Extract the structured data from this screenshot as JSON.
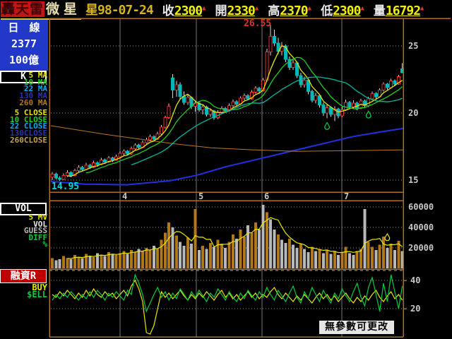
{
  "topbar": {
    "logo": "轟天雷",
    "stock_name": "微星",
    "date": "星98-07-24",
    "fields": [
      {
        "label": "收",
        "value": "2300",
        "arrow": "▲"
      },
      {
        "label": "開",
        "value": "2330",
        "arrow": "▲"
      },
      {
        "label": "高",
        "value": "2370",
        "arrow": "▲"
      },
      {
        "label": "低",
        "value": "2300",
        "arrow": "▲"
      },
      {
        "label": "量",
        "value": "16792",
        "arrow": "▲"
      }
    ]
  },
  "sidebar": {
    "period_line": "日　線",
    "stock_id": "2377",
    "capital": "100億",
    "k_button": "K",
    "vol_button": "VOL",
    "margin_button": "融資R",
    "ma_legend": [
      {
        "label": "5 MA",
        "color": "#e8e800"
      },
      {
        "label": "10 MA",
        "color": "#22cc22"
      },
      {
        "label": "22 MA",
        "color": "#00aaee"
      },
      {
        "label": "130 MA",
        "color": "#2a35a8"
      },
      {
        "label": "260 MA",
        "color": "#b07820"
      }
    ],
    "close_legend": [
      {
        "label": "5 CLOSE",
        "color": "#e8e800"
      },
      {
        "label": "10 CLOSE",
        "color": "#22cc22"
      },
      {
        "label": "22 CLOSE",
        "color": "#00aaee"
      },
      {
        "label": "130CLOSE",
        "color": "#2a35a8"
      },
      {
        "label": "260CLOSE",
        "color": "#c0a050"
      }
    ],
    "vol_legend": [
      {
        "label": "5 MV",
        "color": "#e8e800"
      },
      {
        "label": "VOL",
        "color": "#e8e8e8"
      },
      {
        "label": "GUESS",
        "color": "#b8b8b8"
      },
      {
        "label": "DIFF",
        "color": "#00cc44"
      },
      {
        "label": "%",
        "color": "#00cc44"
      }
    ],
    "margin_legend": [
      {
        "label": "BUY",
        "color": "#e8e800"
      },
      {
        "label": "$ELL",
        "color": "#00cc44"
      }
    ]
  },
  "status_tooltip": "無參數可更改",
  "colors": {
    "frame": "#a87020",
    "grid": "#787878",
    "dotted": "#999999",
    "up": "#e03030",
    "down": "#00b8b8",
    "wick": "#d8d8d8",
    "bar_orange": "#b07818",
    "bar_gray": "#b8b8b8",
    "line_130": "#2230e0",
    "line_260": "#b87820",
    "axis_text": "#c8c8c8",
    "high_label": "#e03030",
    "low_label": "#00d8d8"
  },
  "chart_data": [
    {
      "type": "candlestick",
      "title": "微星 2377 日線",
      "x_tick_labels": [
        "4",
        "5",
        "6",
        "7"
      ],
      "y_ticks": [
        25,
        20,
        15
      ],
      "ylim": [
        14.0,
        27.6
      ],
      "high_annotation": "26.55",
      "low_annotation": "14.95",
      "ma_periods": [
        {
          "period": 5,
          "color": "#e8e800"
        },
        {
          "period": 10,
          "color": "#22cc22"
        },
        {
          "period": 22,
          "color": "#00b8a0"
        }
      ],
      "overlay_lines": [
        {
          "name": "130-line",
          "color": "#2230e0",
          "width": 2,
          "points": [
            [
              72,
              14.9
            ],
            [
              120,
              14.7
            ],
            [
              180,
              14.65
            ],
            [
              240,
              14.95
            ],
            [
              278,
              15.35
            ],
            [
              320,
              16.0
            ],
            [
              380,
              16.75
            ],
            [
              440,
              17.5
            ],
            [
              500,
              18.25
            ],
            [
              540,
              18.6
            ],
            [
              571,
              18.85
            ]
          ]
        },
        {
          "name": "260-line",
          "color": "#b87820",
          "width": 1,
          "points": [
            [
              72,
              19.05
            ],
            [
              150,
              18.4
            ],
            [
              240,
              17.75
            ],
            [
              300,
              17.4
            ],
            [
              360,
              17.25
            ],
            [
              420,
              17.15
            ],
            [
              500,
              17.2
            ],
            [
              571,
              17.25
            ]
          ]
        }
      ],
      "markers": [
        {
          "index": 73,
          "type": "droplet",
          "color": "#00cc44"
        },
        {
          "index": 84,
          "type": "droplet",
          "color": "#00cc44"
        }
      ],
      "candles": [
        [
          15.2,
          15.6,
          15.0,
          15.45
        ],
        [
          15.45,
          15.55,
          15.05,
          15.15
        ],
        [
          15.15,
          15.3,
          14.95,
          15.05
        ],
        [
          15.05,
          15.5,
          15.0,
          15.35
        ],
        [
          15.35,
          15.75,
          15.25,
          15.55
        ],
        [
          15.55,
          15.65,
          15.2,
          15.35
        ],
        [
          15.35,
          15.85,
          15.3,
          15.7
        ],
        [
          15.7,
          16.1,
          15.6,
          15.95
        ],
        [
          15.95,
          16.05,
          15.65,
          15.8
        ],
        [
          15.8,
          16.3,
          15.75,
          16.1
        ],
        [
          16.1,
          16.2,
          15.85,
          15.95
        ],
        [
          15.95,
          16.45,
          15.9,
          16.3
        ],
        [
          16.3,
          16.4,
          16.0,
          16.15
        ],
        [
          16.15,
          16.65,
          16.1,
          16.5
        ],
        [
          16.5,
          16.6,
          16.2,
          16.35
        ],
        [
          16.35,
          16.8,
          16.3,
          16.65
        ],
        [
          16.65,
          16.75,
          16.35,
          16.5
        ],
        [
          16.5,
          16.9,
          16.45,
          16.75
        ],
        [
          16.75,
          17.15,
          16.7,
          17.0
        ],
        [
          17.0,
          17.3,
          16.85,
          17.15
        ],
        [
          17.15,
          17.25,
          16.85,
          16.95
        ],
        [
          16.95,
          17.5,
          16.9,
          17.35
        ],
        [
          17.35,
          17.75,
          17.25,
          17.6
        ],
        [
          17.6,
          17.7,
          17.3,
          17.45
        ],
        [
          17.45,
          17.95,
          17.4,
          17.8
        ],
        [
          17.8,
          18.15,
          17.7,
          18.0
        ],
        [
          18.0,
          18.4,
          17.9,
          18.25
        ],
        [
          18.25,
          18.35,
          17.95,
          18.05
        ],
        [
          18.05,
          18.6,
          18.0,
          18.45
        ],
        [
          18.45,
          19.1,
          18.35,
          18.95
        ],
        [
          18.95,
          19.8,
          18.85,
          19.65
        ],
        [
          19.65,
          20.7,
          19.55,
          20.5
        ],
        [
          22.6,
          22.9,
          21.1,
          21.7
        ],
        [
          21.7,
          22.4,
          21.2,
          22.1
        ],
        [
          22.1,
          22.3,
          21.0,
          21.25
        ],
        [
          21.25,
          21.6,
          20.6,
          20.8
        ],
        [
          20.8,
          21.4,
          20.6,
          21.15
        ],
        [
          21.15,
          21.25,
          20.3,
          20.5
        ],
        [
          20.5,
          20.9,
          20.1,
          20.75
        ],
        [
          20.75,
          20.85,
          20.1,
          20.25
        ],
        [
          20.25,
          20.6,
          19.9,
          20.45
        ],
        [
          20.45,
          20.55,
          19.75,
          19.9
        ],
        [
          19.9,
          20.35,
          19.7,
          20.15
        ],
        [
          20.15,
          20.25,
          19.5,
          19.65
        ],
        [
          19.65,
          20.2,
          19.55,
          20.05
        ],
        [
          20.05,
          20.5,
          19.95,
          20.35
        ],
        [
          20.35,
          20.45,
          20.0,
          20.15
        ],
        [
          20.15,
          20.7,
          20.1,
          20.55
        ],
        [
          20.55,
          21.0,
          20.45,
          20.85
        ],
        [
          20.85,
          20.95,
          20.5,
          20.65
        ],
        [
          20.65,
          21.25,
          20.6,
          21.1
        ],
        [
          21.1,
          21.45,
          20.95,
          21.3
        ],
        [
          21.3,
          21.4,
          20.95,
          21.05
        ],
        [
          21.05,
          21.7,
          21.0,
          21.55
        ],
        [
          21.55,
          22.0,
          21.45,
          21.85
        ],
        [
          21.85,
          21.95,
          21.5,
          21.65
        ],
        [
          21.65,
          22.6,
          21.6,
          22.45
        ],
        [
          22.45,
          24.8,
          22.35,
          24.55
        ],
        [
          24.55,
          26.55,
          24.3,
          25.7
        ],
        [
          25.7,
          26.2,
          25.0,
          25.2
        ],
        [
          25.2,
          25.6,
          24.4,
          24.6
        ],
        [
          24.6,
          25.3,
          24.3,
          25.0
        ],
        [
          25.0,
          25.1,
          23.8,
          24.0
        ],
        [
          24.0,
          24.2,
          23.2,
          23.4
        ],
        [
          23.4,
          24.0,
          23.2,
          23.75
        ],
        [
          23.75,
          23.85,
          22.6,
          22.8
        ],
        [
          22.8,
          23.0,
          21.9,
          22.1
        ],
        [
          22.1,
          22.7,
          21.9,
          22.45
        ],
        [
          22.45,
          22.55,
          21.4,
          21.6
        ],
        [
          21.6,
          21.75,
          20.8,
          20.95
        ],
        [
          20.95,
          21.5,
          20.7,
          21.3
        ],
        [
          21.3,
          21.4,
          20.4,
          20.6
        ],
        [
          20.6,
          20.8,
          19.8,
          20.0
        ],
        [
          20.0,
          20.6,
          19.6,
          20.4
        ],
        [
          20.4,
          20.5,
          19.7,
          19.9
        ],
        [
          19.9,
          20.5,
          19.4,
          20.3
        ],
        [
          20.3,
          20.4,
          19.6,
          19.8
        ],
        [
          19.8,
          20.45,
          19.7,
          20.25
        ],
        [
          20.25,
          21.0,
          20.15,
          20.8
        ],
        [
          20.8,
          20.9,
          20.3,
          20.45
        ],
        [
          20.45,
          20.95,
          20.35,
          20.75
        ],
        [
          20.75,
          20.85,
          20.2,
          20.35
        ],
        [
          20.35,
          21.05,
          20.3,
          20.9
        ],
        [
          20.9,
          21.0,
          20.4,
          20.55
        ],
        [
          20.55,
          21.2,
          20.45,
          21.05
        ],
        [
          21.05,
          21.6,
          20.95,
          21.45
        ],
        [
          21.45,
          21.55,
          21.05,
          21.2
        ],
        [
          21.2,
          21.85,
          21.15,
          21.7
        ],
        [
          21.7,
          22.3,
          21.6,
          22.15
        ],
        [
          22.15,
          22.25,
          21.75,
          21.9
        ],
        [
          21.9,
          22.55,
          21.85,
          22.4
        ],
        [
          22.4,
          22.5,
          22.0,
          22.15
        ],
        [
          22.15,
          22.85,
          22.1,
          22.7
        ],
        [
          23.3,
          23.7,
          23.0,
          23.0
        ]
      ]
    },
    {
      "type": "bar",
      "title": "VOL",
      "y_ticks": [
        60000,
        40000,
        20000
      ],
      "mv_period": 5,
      "mv_color": "#e8e800",
      "marker": {
        "index": 89,
        "type": "droplet",
        "color": "#e8e800"
      },
      "values": [
        10000,
        8000,
        9000,
        12000,
        10000,
        9000,
        13000,
        11000,
        10000,
        14000,
        12000,
        11000,
        15000,
        13000,
        12000,
        16000,
        14000,
        13000,
        15000,
        17000,
        14000,
        18000,
        16000,
        19000,
        17000,
        20000,
        18000,
        22000,
        19000,
        28000,
        35000,
        45000,
        40000,
        32000,
        26000,
        22000,
        30000,
        24000,
        58000,
        18000,
        22000,
        19000,
        25000,
        21000,
        28000,
        24000,
        20000,
        26000,
        33000,
        29000,
        38000,
        31000,
        42000,
        35000,
        45000,
        38000,
        62000,
        55000,
        48000,
        38000,
        33000,
        28000,
        25000,
        29000,
        23000,
        20000,
        24000,
        19000,
        16000,
        21000,
        17000,
        19000,
        15000,
        18000,
        14000,
        17000,
        13000,
        16000,
        21000,
        15000,
        13000,
        17000,
        19000,
        58000,
        26000,
        21000,
        18000,
        23000,
        31000,
        20000,
        24000,
        18000,
        27000,
        16792
      ],
      "bar_colors": [
        "o",
        "g",
        "g",
        "o",
        "o",
        "g",
        "o",
        "o",
        "g",
        "o",
        "g",
        "o",
        "g",
        "o",
        "g",
        "o",
        "g",
        "o",
        "o",
        "o",
        "g",
        "o",
        "o",
        "g",
        "o",
        "o",
        "o",
        "g",
        "o",
        "o",
        "o",
        "o",
        "g",
        "o",
        "g",
        "g",
        "o",
        "g",
        "o",
        "g",
        "o",
        "g",
        "o",
        "g",
        "o",
        "o",
        "g",
        "o",
        "o",
        "g",
        "o",
        "o",
        "g",
        "o",
        "o",
        "g",
        "g",
        "o",
        "g",
        "g",
        "o",
        "g",
        "g",
        "o",
        "g",
        "g",
        "o",
        "g",
        "g",
        "o",
        "g",
        "o",
        "g",
        "o",
        "g",
        "o",
        "g",
        "o",
        "o",
        "g",
        "g",
        "o",
        "o",
        "g",
        "o",
        "o",
        "g",
        "o",
        "o",
        "g",
        "o",
        "g",
        "o",
        "g"
      ]
    },
    {
      "type": "line",
      "title": "融資R",
      "y_ticks": [
        40,
        20
      ],
      "series": [
        {
          "name": "BUY",
          "color": "#e8e800",
          "values": [
            30,
            28,
            32,
            29,
            33,
            30,
            27,
            31,
            28,
            33,
            29,
            34,
            30,
            28,
            32,
            29,
            31,
            27,
            30,
            33,
            29,
            36,
            40,
            34,
            25,
            3,
            2,
            8,
            20,
            32,
            28,
            31,
            27,
            30,
            33,
            29,
            26,
            30,
            27,
            31,
            28,
            32,
            29,
            26,
            30,
            33,
            28,
            31,
            27,
            30,
            26,
            29,
            32,
            28,
            31,
            27,
            30,
            28,
            32,
            35,
            30,
            27,
            31,
            28,
            25,
            29,
            26,
            30,
            27,
            24,
            28,
            31,
            27,
            30,
            26,
            29,
            25,
            28,
            31,
            27,
            24,
            28,
            25,
            29,
            26,
            30,
            33,
            28,
            25,
            29,
            32,
            27,
            30,
            26
          ]
        },
        {
          "name": "SELL",
          "color": "#00cc44",
          "values": [
            26,
            30,
            27,
            31,
            28,
            32,
            29,
            26,
            30,
            27,
            32,
            28,
            33,
            30,
            26,
            31,
            28,
            32,
            29,
            26,
            33,
            30,
            44,
            38,
            30,
            18,
            24,
            30,
            35,
            28,
            32,
            26,
            31,
            27,
            34,
            30,
            26,
            32,
            28,
            33,
            29,
            25,
            31,
            28,
            34,
            30,
            26,
            32,
            28,
            25,
            31,
            27,
            33,
            29,
            26,
            32,
            28,
            35,
            30,
            26,
            33,
            29,
            25,
            31,
            36,
            28,
            24,
            32,
            27,
            35,
            30,
            25,
            33,
            28,
            24,
            31,
            27,
            34,
            29,
            25,
            32,
            38,
            28,
            22,
            35,
            42,
            30,
            18,
            38,
            25,
            44,
            32,
            20,
            36
          ]
        }
      ]
    }
  ]
}
